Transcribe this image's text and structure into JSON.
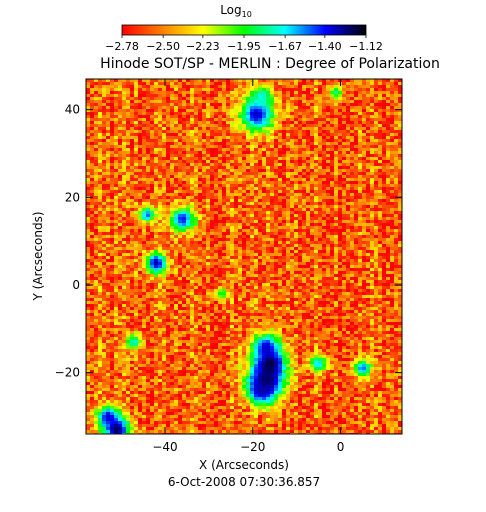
{
  "chart_data": {
    "type": "heatmap",
    "title": "Hinode SOT/SP - MERLIN : Degree of Polarization",
    "xlabel": "X (Arcseconds)",
    "ylabel": "Y (Arcseconds)",
    "timestamp": "6-Oct-2008 07:30:36.857",
    "xlim": [
      -58,
      14
    ],
    "ylim": [
      -34,
      47
    ],
    "x_ticks": [
      -40,
      -20,
      0
    ],
    "y_ticks": [
      40,
      20,
      0,
      -20
    ],
    "x_tick_labels": [
      "−40",
      "−20",
      "0"
    ],
    "y_tick_labels": [
      "40",
      "20",
      "0",
      "−20"
    ],
    "colorbar": {
      "label": "Log",
      "label_subscript": "10",
      "range": [
        -2.78,
        -1.12
      ],
      "tick_values": [
        -2.78,
        -2.5,
        -2.23,
        -1.95,
        -1.67,
        -1.4,
        -1.12
      ],
      "tick_labels": [
        "−2.78",
        "−2.50",
        "−2.23",
        "−1.95",
        "−1.67",
        "−1.40",
        "−1.12"
      ],
      "colors": [
        "#ff0000",
        "#ff8000",
        "#ffff00",
        "#00ff00",
        "#00ffff",
        "#0000ff",
        "#000000"
      ]
    },
    "background_level": -2.6,
    "features": [
      {
        "x": -19,
        "y": 39,
        "radius": 2.5,
        "value": -1.3
      },
      {
        "x": -18,
        "y": 43,
        "radius": 1.5,
        "value": -1.7
      },
      {
        "x": -36,
        "y": 15,
        "radius": 1.8,
        "value": -1.4
      },
      {
        "x": -44,
        "y": 16,
        "radius": 1.2,
        "value": -1.5
      },
      {
        "x": -42,
        "y": 5,
        "radius": 1.6,
        "value": -1.3
      },
      {
        "x": -17,
        "y": -14,
        "radius": 2.0,
        "value": -1.4
      },
      {
        "x": -16,
        "y": -18,
        "radius": 2.4,
        "value": -1.2
      },
      {
        "x": -17,
        "y": -22,
        "radius": 2.6,
        "value": -1.15
      },
      {
        "x": -18,
        "y": -24,
        "radius": 2.0,
        "value": -1.3
      },
      {
        "x": -53,
        "y": -30,
        "radius": 1.6,
        "value": -1.4
      },
      {
        "x": -51,
        "y": -33,
        "radius": 2.0,
        "value": -1.2
      },
      {
        "x": -5,
        "y": -18,
        "radius": 1.3,
        "value": -1.6
      },
      {
        "x": 5,
        "y": -19,
        "radius": 1.3,
        "value": -1.5
      },
      {
        "x": -47,
        "y": -13,
        "radius": 1.2,
        "value": -1.7
      },
      {
        "x": -1,
        "y": 44,
        "radius": 1.0,
        "value": -1.8
      },
      {
        "x": -27,
        "y": -2,
        "radius": 1.0,
        "value": -1.9
      }
    ]
  }
}
